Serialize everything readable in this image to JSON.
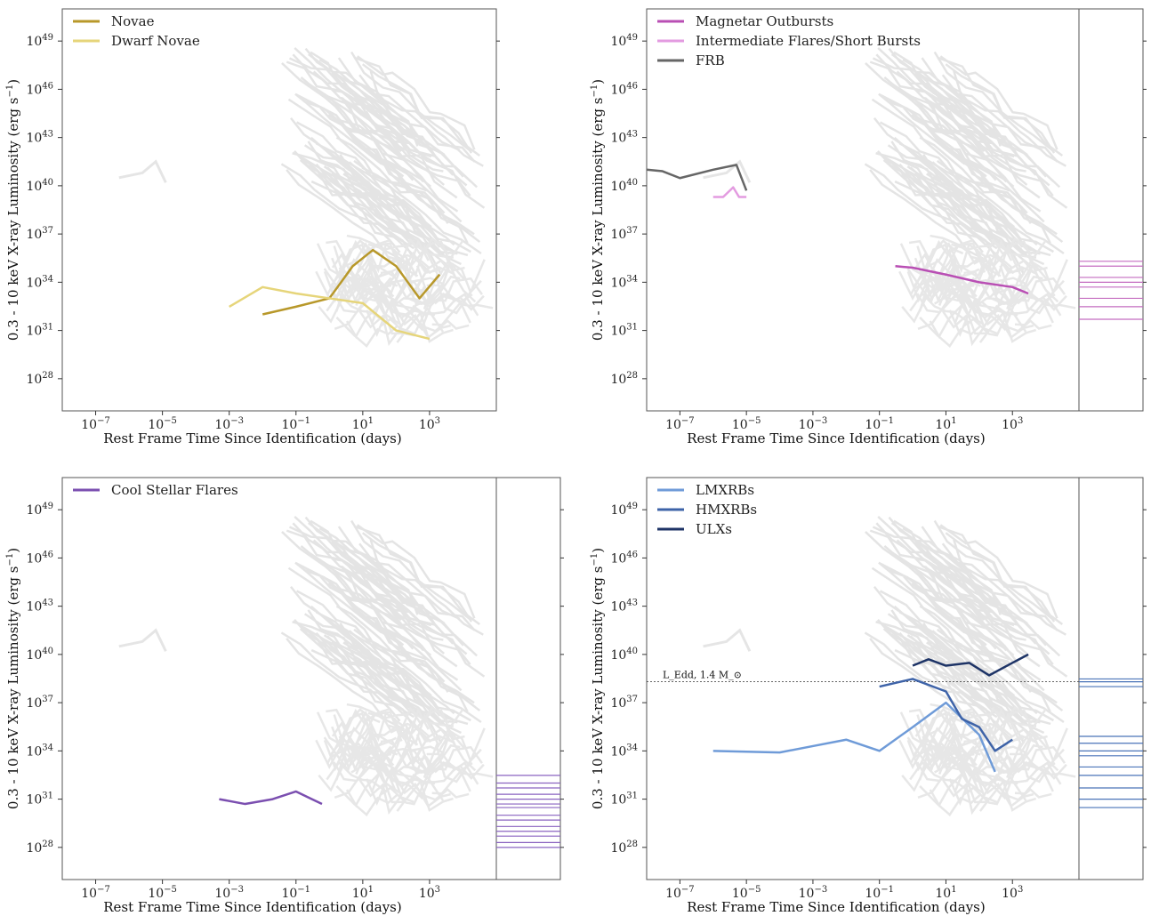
{
  "chart_data": [
    {
      "type": "line",
      "xlabel": "Rest Frame Time Since Identification (days)",
      "ylabel": "0.3 - 10 keV X-ray Luminosity (erg s$^{-1}$)",
      "x_ticks": [
        "10^-7",
        "10^-5",
        "10^-3",
        "10^-1",
        "10^1",
        "10^3"
      ],
      "y_ticks": [
        "10^28",
        "10^31",
        "10^34",
        "10^37",
        "10^40",
        "10^43",
        "10^46",
        "10^49"
      ],
      "xscale": "log",
      "yscale": "log",
      "xlim": [
        1e-08,
        100000.0
      ],
      "ylim": [
        1e+26,
        1e+51
      ],
      "legend_loc": "upper-left",
      "background_color": "#e3e3e3",
      "series": [
        {
          "name": "Novae",
          "color": "#b8982a",
          "x": [
            0.01,
            0.1,
            1,
            5,
            20,
            100,
            500,
            2000
          ],
          "y": [
            1e+32,
            3e+32,
            1e+33,
            1e+35,
            1e+36,
            1e+35,
            1e+33,
            3e+34
          ]
        },
        {
          "name": "Dwarf Novae",
          "color": "#e6d57a",
          "x": [
            0.001,
            0.01,
            0.1,
            1,
            10,
            100,
            1000
          ],
          "y": [
            3e+32,
            5e+33,
            2e+33,
            1e+33,
            5e+32,
            1e+31,
            3e+30
          ]
        }
      ],
      "side_panel": null
    },
    {
      "type": "line",
      "xlabel": "Rest Frame Time Since Identification (days)",
      "ylabel": "0.3 - 10 keV X-ray Luminosity (erg s$^{-1}$)",
      "x_ticks": [
        "10^-7",
        "10^-5",
        "10^-3",
        "10^-1",
        "10^1",
        "10^3"
      ],
      "y_ticks": [
        "10^28",
        "10^31",
        "10^34",
        "10^37",
        "10^40",
        "10^43",
        "10^46",
        "10^49"
      ],
      "xscale": "log",
      "yscale": "log",
      "xlim": [
        1e-08,
        100000.0
      ],
      "ylim": [
        1e+26,
        1e+51
      ],
      "legend_loc": "upper-left",
      "series": [
        {
          "name": "Magnetar Outbursts",
          "color": "#b94fb4",
          "x": [
            0.3,
            1,
            10,
            100,
            1000,
            3000
          ],
          "y": [
            1e+35,
            8e+34,
            3e+34,
            1e+34,
            5e+33,
            2e+33
          ]
        },
        {
          "name": "Intermediate Flares/Short Bursts",
          "color": "#e39be0",
          "x": [
            1e-06,
            2e-06,
            4e-06,
            6e-06,
            1e-05
          ],
          "y": [
            2e+39,
            2e+39,
            8e+39,
            2e+39,
            2e+39
          ]
        },
        {
          "name": "FRB",
          "color": "#666666",
          "x": [
            1e-08,
            3e-08,
            1e-07,
            1e-06,
            5e-06,
            1e-05
          ],
          "y": [
            1e+41,
            8e+40,
            3e+40,
            1e+41,
            2e+41,
            5e+39
          ]
        }
      ],
      "side_panel": {
        "color": "#c46cc0",
        "values": [
          2e+35,
          1e+35,
          2e+34,
          1e+34,
          5e+33,
          1e+33,
          3e+32,
          5e+31
        ]
      }
    },
    {
      "type": "line",
      "xlabel": "Rest Frame Time Since Identification (days)",
      "ylabel": "0.3 - 10 keV X-ray Luminosity (erg s$^{-1}$)",
      "x_ticks": [
        "10^-7",
        "10^-5",
        "10^-3",
        "10^-1",
        "10^1",
        "10^3"
      ],
      "y_ticks": [
        "10^28",
        "10^31",
        "10^34",
        "10^37",
        "10^40",
        "10^43",
        "10^46",
        "10^49"
      ],
      "xscale": "log",
      "yscale": "log",
      "xlim": [
        1e-08,
        100000.0
      ],
      "ylim": [
        1e+26,
        1e+51
      ],
      "legend_loc": "upper-left",
      "series": [
        {
          "name": "Cool Stellar Flares",
          "color": "#7b4fb0",
          "x": [
            0.0005,
            0.003,
            0.02,
            0.1,
            0.3,
            0.6
          ],
          "y": [
            1e+31,
            5e+30,
            1e+31,
            3e+31,
            1e+31,
            5e+30
          ]
        }
      ],
      "side_panel": {
        "color": "#8a63c0",
        "values": [
          3e+32,
          1e+32,
          5e+31,
          2e+31,
          1e+31,
          5e+30,
          3e+30,
          1e+30,
          5e+29,
          2e+29,
          1e+29,
          5e+28,
          2e+28,
          1e+28
        ]
      }
    },
    {
      "type": "line",
      "xlabel": "Rest Frame Time Since Identification (days)",
      "ylabel": "0.3 - 10 keV X-ray Luminosity (erg s$^{-1}$)",
      "x_ticks": [
        "10^-7",
        "10^-5",
        "10^-3",
        "10^-1",
        "10^1",
        "10^3"
      ],
      "y_ticks": [
        "10^28",
        "10^31",
        "10^34",
        "10^37",
        "10^40",
        "10^43",
        "10^46",
        "10^49"
      ],
      "xscale": "log",
      "yscale": "log",
      "xlim": [
        1e-08,
        100000.0
      ],
      "ylim": [
        1e+26,
        1e+51
      ],
      "legend_loc": "upper-left",
      "annotation": {
        "text": "L_Edd, 1.4 M_⊙",
        "y": 2e+38
      },
      "series": [
        {
          "name": "LMXRBs",
          "color": "#6f9bd8",
          "x": [
            1e-06,
            0.0001,
            0.001,
            0.01,
            0.1,
            1,
            10,
            100,
            300
          ],
          "y": [
            1e+34,
            8e+33,
            2e+34,
            5e+34,
            1e+34,
            3e+35,
            1e+37,
            1e+35,
            5e+32
          ]
        },
        {
          "name": "HMXRBs",
          "color": "#3e63a8",
          "x": [
            0.1,
            1,
            10,
            30,
            100,
            300,
            1000
          ],
          "y": [
            1e+38,
            3e+38,
            5e+37,
            1e+36,
            3e+35,
            1e+34,
            5e+34
          ]
        },
        {
          "name": "ULXs",
          "color": "#1d3366",
          "x": [
            1,
            3,
            10,
            50,
            200,
            1000,
            3000
          ],
          "y": [
            2e+39,
            5e+39,
            2e+39,
            3e+39,
            5e+38,
            3e+39,
            1e+40
          ]
        }
      ],
      "side_panel": {
        "color": "#4a73b8",
        "values": [
          3e+38,
          2e+38,
          1e+38,
          8e+34,
          3e+34,
          1e+34,
          5e+33,
          1e+33,
          3e+32,
          5e+31,
          1e+31,
          3e+30
        ]
      }
    }
  ]
}
